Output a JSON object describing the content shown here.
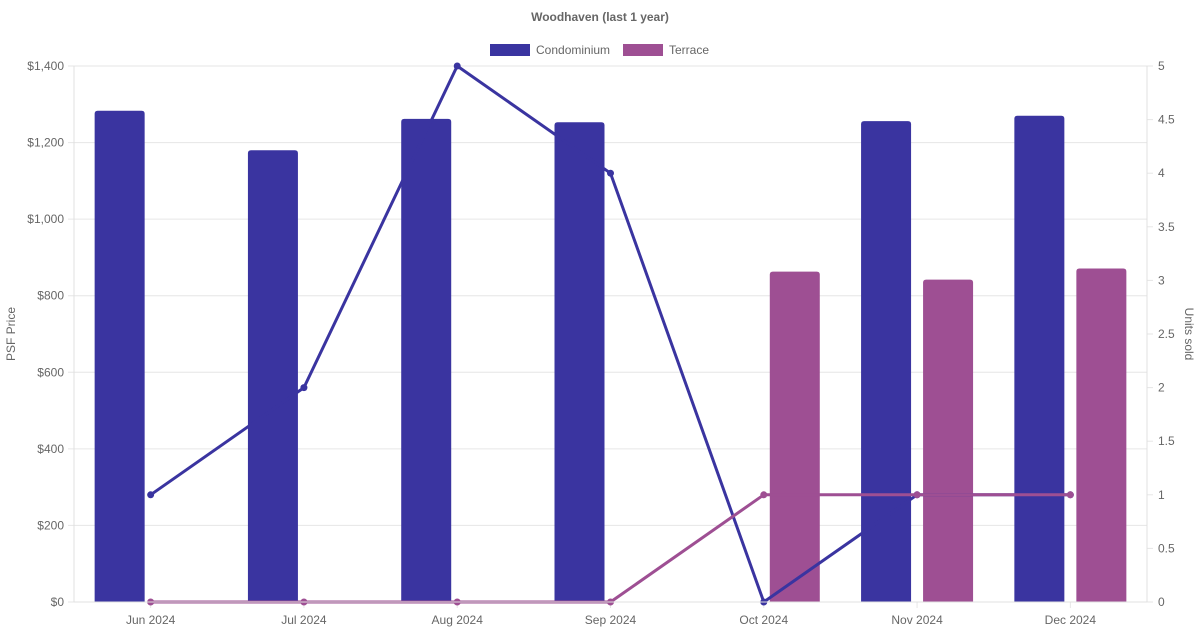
{
  "chart_data": {
    "type": "bar",
    "title": "Woodhaven (last 1 year)",
    "categories": [
      "Jun 2024",
      "Jul 2024",
      "Aug 2024",
      "Sep 2024",
      "Oct 2024",
      "Nov 2024",
      "Dec 2024"
    ],
    "y_left": {
      "label": "PSF Price",
      "ticks": [
        "$0",
        "$200",
        "$400",
        "$600",
        "$800",
        "$1,000",
        "$1,200",
        "$1,400"
      ],
      "ylim": [
        0,
        1400
      ]
    },
    "y_right": {
      "label": "Units sold",
      "ticks": [
        "0",
        "0.5",
        "1",
        "1.5",
        "2",
        "2.5",
        "3",
        "3.5",
        "4",
        "4.5",
        "5"
      ],
      "ylim": [
        0,
        5
      ]
    },
    "legend": [
      "Condominium",
      "Terrace"
    ],
    "legend_position": "top",
    "grid": true,
    "bar_series": [
      {
        "name": "Condominium",
        "color": "#3a34a0",
        "values": [
          1283,
          1180,
          1262,
          1253,
          null,
          1256,
          1270
        ]
      },
      {
        "name": "Terrace",
        "color": "#9e4f93",
        "values": [
          null,
          null,
          null,
          null,
          863,
          842,
          871
        ]
      }
    ],
    "line_series": [
      {
        "name": "Condominium",
        "color": "#3a34a0",
        "values": [
          1,
          2,
          5,
          4,
          0,
          1,
          1
        ]
      },
      {
        "name": "Terrace",
        "color": "#9e4f93",
        "values": [
          0,
          0,
          0,
          0,
          1,
          1,
          1
        ]
      }
    ]
  }
}
